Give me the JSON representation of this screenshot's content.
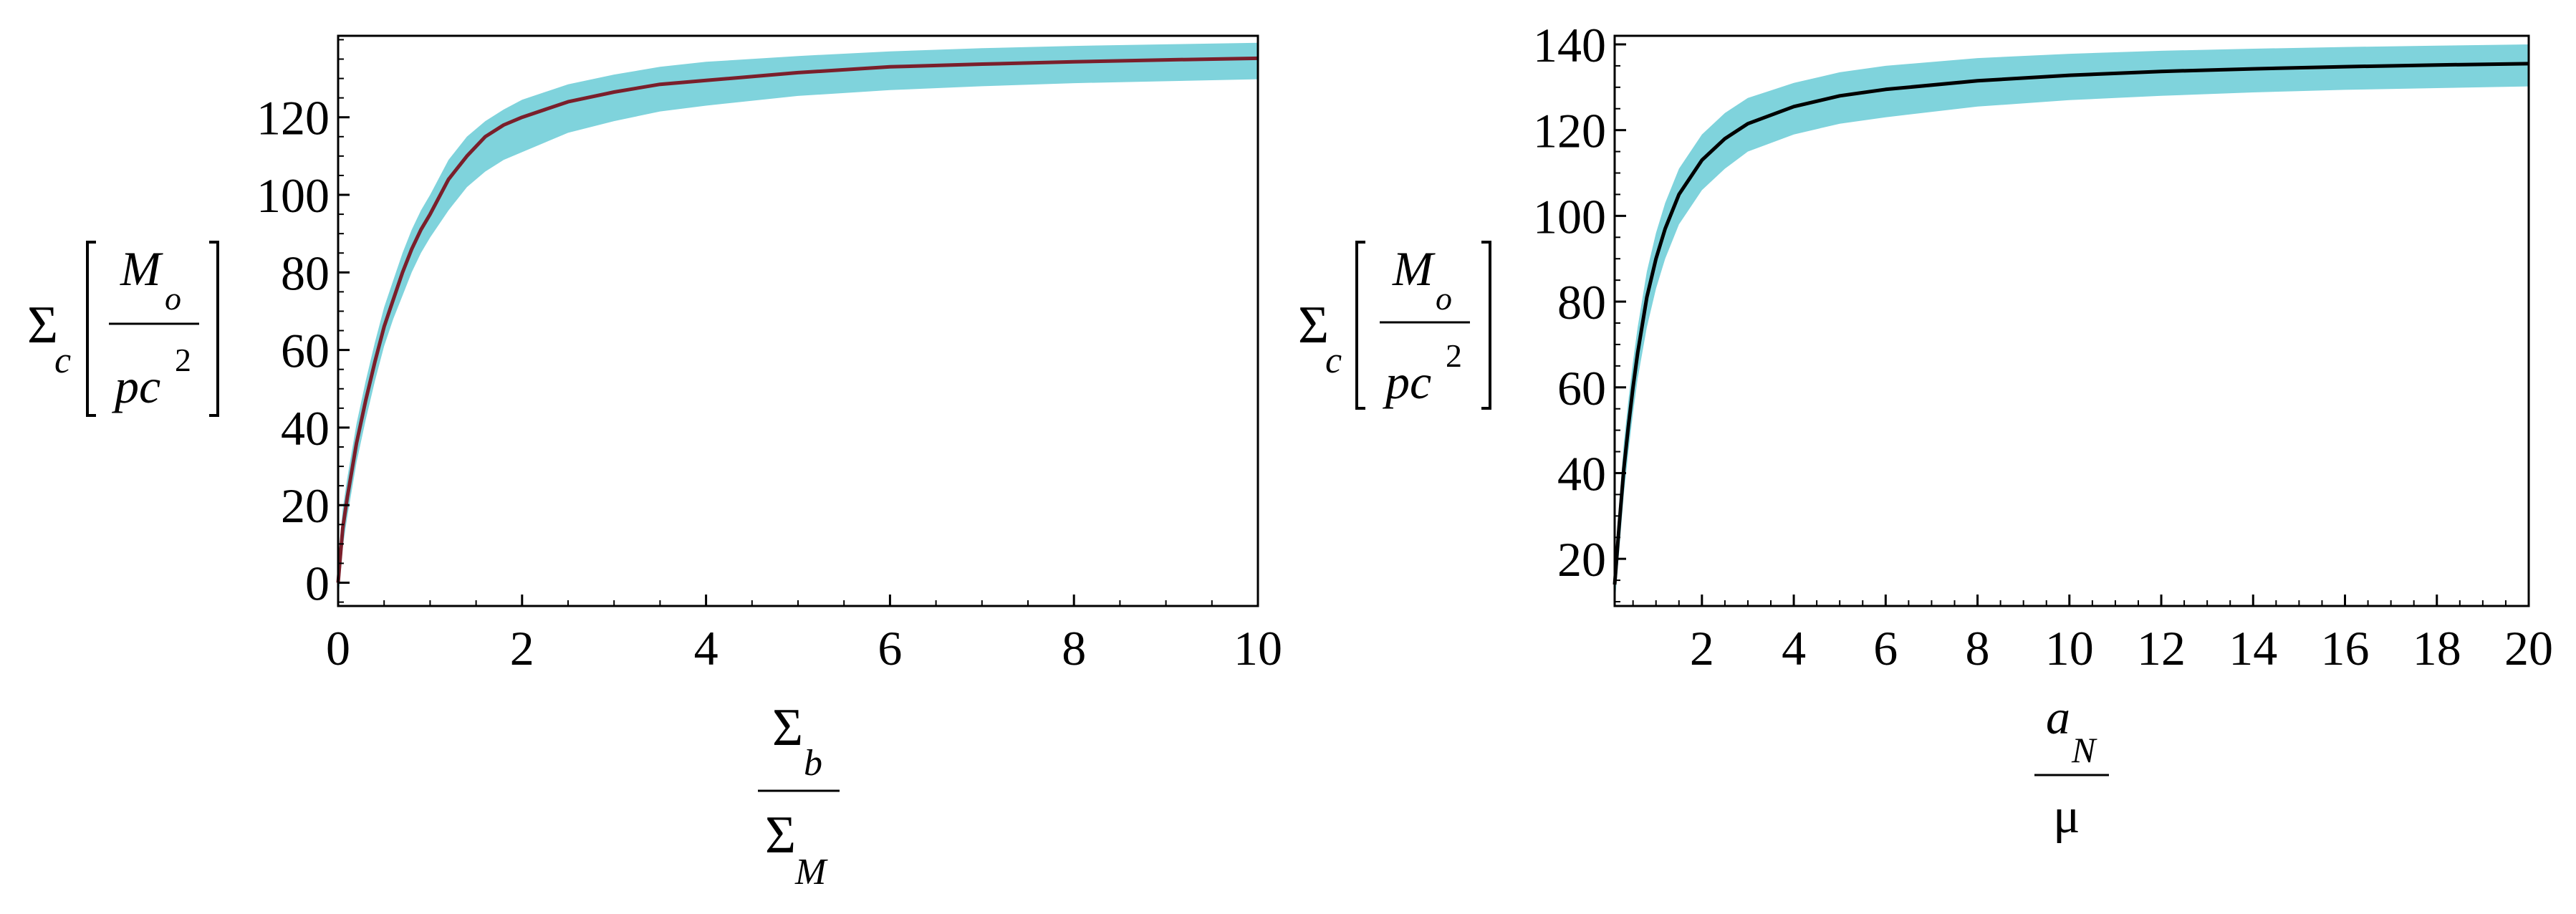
{
  "chart_data": [
    {
      "type": "line",
      "title": "",
      "xlabel": {
        "numerator": "Σ",
        "numerator_sub": "b",
        "denominator": "Σ",
        "denominator_sub": "M"
      },
      "ylabel": {
        "symbol": "Σ",
        "symbol_sub": "c",
        "unit_num": "M",
        "unit_num_sub": "o",
        "unit_den": "pc",
        "unit_den_sup": "2"
      },
      "xlim": [
        0,
        10
      ],
      "ylim": [
        -6,
        141
      ],
      "xticks": [
        0,
        2,
        4,
        6,
        8,
        10
      ],
      "xtick_labels": [
        "0",
        "2",
        "4",
        "6",
        "8",
        "10"
      ],
      "yticks": [
        0,
        20,
        40,
        60,
        80,
        100,
        120
      ],
      "ytick_labels": [
        "0",
        "20",
        "40",
        "60",
        "80",
        "100",
        "120"
      ],
      "grid": false,
      "colors": {
        "line": "#7a1f2b",
        "band": "#7fd3dc"
      },
      "series": [
        {
          "x": [
            0.0,
            0.05,
            0.1,
            0.2,
            0.3,
            0.4,
            0.5,
            0.6,
            0.7,
            0.8,
            0.9,
            1.0,
            1.2,
            1.4,
            1.6,
            1.8,
            2.0,
            2.5,
            3.0,
            3.5,
            4.0,
            5.0,
            6.0,
            7.0,
            8.0,
            9.0,
            10.0
          ],
          "y": [
            0,
            14,
            22,
            36,
            47,
            57,
            66,
            73,
            80,
            86,
            91,
            95,
            104,
            110,
            115,
            118,
            120,
            124,
            126.5,
            128.5,
            129.5,
            131.5,
            133,
            133.7,
            134.3,
            134.8,
            135.2
          ],
          "band_low": [
            -5,
            9,
            17,
            31,
            42,
            52,
            61,
            68,
            74,
            80,
            85,
            89,
            96,
            102,
            106,
            109,
            111,
            116,
            119,
            121.5,
            123,
            125.5,
            127,
            128,
            128.8,
            129.3,
            129.8
          ],
          "band_high": [
            5,
            19,
            27,
            41,
            52,
            62,
            71,
            78,
            85,
            91,
            96,
            100,
            109,
            115,
            119,
            122,
            124.5,
            128.5,
            131,
            133,
            134.3,
            135.8,
            137,
            137.8,
            138.4,
            138.8,
            139.2
          ]
        }
      ]
    },
    {
      "type": "line",
      "title": "",
      "xlabel": {
        "numerator": "a",
        "numerator_sub": "N",
        "denominator": "μ"
      },
      "ylabel": {
        "symbol": "Σ",
        "symbol_sub": "c",
        "unit_num": "M",
        "unit_num_sub": "o",
        "unit_den": "pc",
        "unit_den_sup": "2"
      },
      "xlim": [
        0.1,
        20
      ],
      "ylim": [
        9,
        142
      ],
      "xticks": [
        2,
        4,
        6,
        8,
        10,
        12,
        14,
        16,
        18,
        20
      ],
      "xtick_labels": [
        "2",
        "4",
        "6",
        "8",
        "10",
        "12",
        "14",
        "16",
        "18",
        "20"
      ],
      "yticks": [
        20,
        40,
        60,
        80,
        100,
        120,
        140
      ],
      "ytick_labels": [
        "20",
        "40",
        "60",
        "80",
        "100",
        "120",
        "140"
      ],
      "grid": false,
      "colors": {
        "line": "#000000",
        "band": "#7fd3dc"
      },
      "series": [
        {
          "x": [
            0.1,
            0.2,
            0.3,
            0.4,
            0.5,
            0.6,
            0.8,
            1.0,
            1.2,
            1.5,
            2.0,
            2.5,
            3.0,
            4.0,
            5.0,
            6.0,
            8.0,
            10.0,
            12.0,
            14.0,
            16.0,
            18.0,
            20.0
          ],
          "y": [
            14,
            28,
            41,
            51,
            60,
            68,
            81,
            90,
            97,
            105,
            113,
            118,
            121.5,
            125.5,
            128,
            129.5,
            131.5,
            132.8,
            133.7,
            134.3,
            134.8,
            135.2,
            135.5
          ],
          "band_low": [
            9,
            22,
            35,
            45,
            54,
            62,
            74,
            83,
            90,
            98,
            106,
            111,
            115,
            119,
            121.5,
            123,
            125.5,
            127,
            128,
            128.8,
            129.4,
            129.8,
            130.2
          ],
          "band_high": [
            19,
            33,
            47,
            57,
            66,
            74,
            87,
            96,
            103,
            111,
            119,
            124,
            127.5,
            131,
            133.5,
            135,
            136.8,
            137.8,
            138.5,
            139,
            139.4,
            139.7,
            140
          ]
        }
      ]
    }
  ]
}
